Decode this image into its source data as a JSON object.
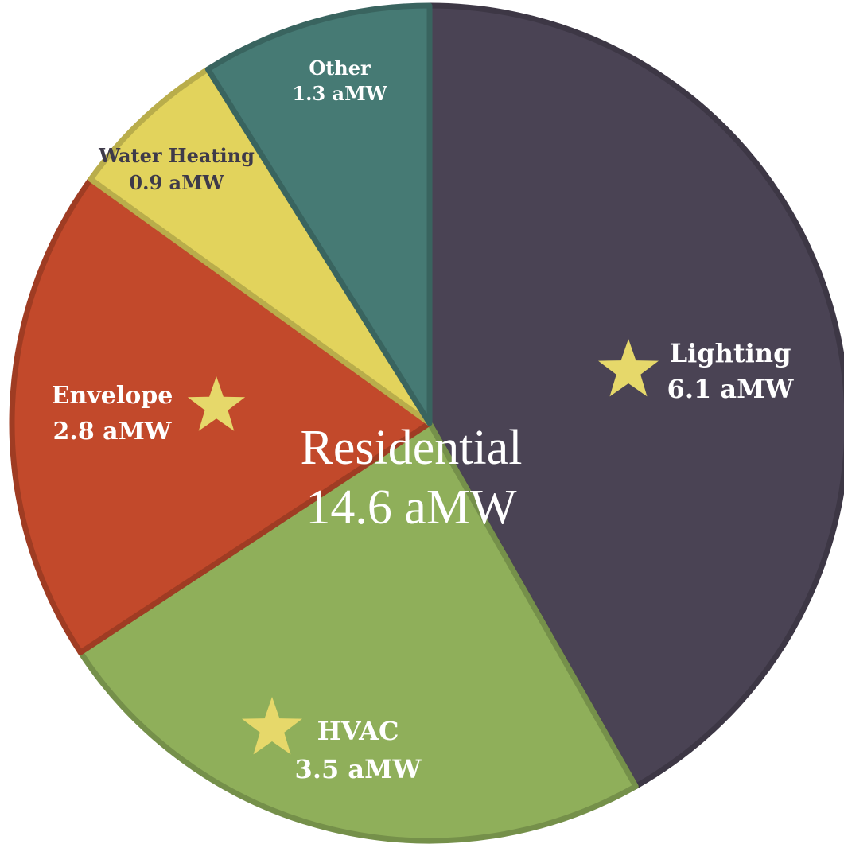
{
  "chart_data": {
    "type": "pie",
    "title": "",
    "center_label": {
      "line1": "Residential",
      "line2": "14.6 aMW"
    },
    "unit": "aMW",
    "slices": [
      {
        "label": "Lighting",
        "value": 6.1,
        "value_label": "6.1 aMW",
        "color": "#4a4354",
        "starred": true
      },
      {
        "label": "HVAC",
        "value": 3.5,
        "value_label": "3.5 aMW",
        "color": "#8faf5a",
        "starred": true
      },
      {
        "label": "Envelope",
        "value": 2.8,
        "value_label": "2.8 aMW",
        "color": "#c2492b",
        "starred": true
      },
      {
        "label": "Water Heating",
        "value": 0.9,
        "value_label": "0.9 aMW",
        "color": "#e2d35c",
        "starred": false
      },
      {
        "label": "Other",
        "value": 1.3,
        "value_label": "1.3 aMW",
        "color": "#467a74",
        "starred": false
      }
    ],
    "star_color": "#e6d86a",
    "label_colors": {
      "light": "#ffffff",
      "dark": "#3e3a4a"
    }
  }
}
